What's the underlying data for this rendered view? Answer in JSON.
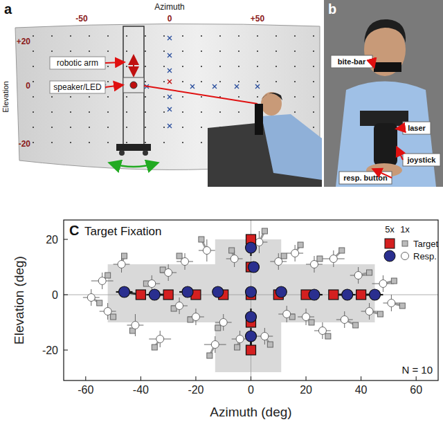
{
  "panel_a": {
    "label": "a",
    "axis_title": "Azimuth",
    "azimuth_ticks": [
      "-50",
      "0",
      "+50"
    ],
    "elevation_title": "Elevation",
    "elevation_ticks": [
      "+20",
      "0",
      "-20"
    ],
    "callouts": [
      "robotic arm",
      "speaker/LED"
    ]
  },
  "panel_b": {
    "label": "b",
    "callouts": [
      "bite-bar",
      "laser",
      "joystick",
      "resp. button"
    ]
  },
  "chart_data": {
    "type": "scatter",
    "panel_label": "C",
    "title": "Target Fixation",
    "xlabel": "Azimuth (deg)",
    "ylabel": "Elevation (deg)",
    "xlim": [
      -68,
      68
    ],
    "ylim": [
      -31,
      27
    ],
    "xticks": [
      -60,
      -40,
      -20,
      0,
      20,
      40,
      60
    ],
    "yticks": [
      -20,
      0,
      20
    ],
    "grid": false,
    "legend": "upper right",
    "legend_columns": [
      "5x",
      "1x"
    ],
    "annotation": "N = 10",
    "reference_lines": {
      "x": [
        0
      ],
      "y": [
        0
      ]
    },
    "shaded_regions": [
      {
        "xlim": [
          -52,
          45
        ],
        "ylim": [
          -10,
          11
        ]
      },
      {
        "xlim": [
          -13,
          11
        ],
        "ylim": [
          -28,
          20
        ]
      }
    ],
    "series": [
      {
        "name": "Target",
        "color": "#d42020",
        "marker": "square",
        "x": [
          -40,
          -30,
          -20,
          -10,
          10,
          20,
          30,
          40,
          0,
          0,
          0,
          0,
          0
        ],
        "values": [
          0,
          0,
          0,
          0,
          0,
          0,
          0,
          0,
          20,
          10,
          0,
          -10,
          -20
        ]
      },
      {
        "name": "Resp.",
        "color": "#2a2f8f",
        "marker": "circle",
        "x": [
          -46,
          -35,
          -23,
          -12,
          11,
          23,
          35,
          45,
          0,
          1,
          0,
          0,
          0
        ],
        "values": [
          1,
          0,
          1,
          1,
          1,
          0,
          0,
          0,
          17,
          10,
          1,
          -8,
          -15
        ],
        "x_error": [
          3,
          3,
          3,
          2,
          2,
          3,
          3,
          3,
          2,
          2,
          1,
          2,
          2
        ],
        "y_error": [
          2,
          2,
          2,
          2,
          2,
          2,
          2,
          2,
          3,
          2,
          1,
          3,
          3
        ]
      },
      {
        "name": "Target",
        "color": "#bbbbbb",
        "marker": "square",
        "x": [
          -55,
          -52,
          -50,
          -46,
          -43,
          -38,
          -35,
          -32,
          -28,
          -26,
          -22,
          -18,
          -15,
          -12,
          -7,
          -5,
          5,
          7,
          12,
          15,
          18,
          22,
          25,
          28,
          33,
          38,
          43,
          47,
          52,
          55
        ],
        "values": [
          -3,
          7,
          -8,
          14,
          -13,
          4,
          -19,
          9,
          -5,
          14,
          -9,
          20,
          -22,
          -12,
          16,
          -19,
          23,
          -18,
          14,
          -8,
          18,
          -10,
          13,
          -15,
          16,
          -11,
          8,
          -7,
          5,
          -4
        ]
      },
      {
        "name": "Resp.",
        "color": "#ffffff",
        "marker": "circle",
        "x": [
          -58,
          -54,
          -52,
          -47,
          -42,
          -36,
          -33,
          -30,
          -26,
          -24,
          -20,
          -16,
          -13,
          -10,
          -6,
          -4,
          3,
          5,
          10,
          13,
          16,
          20,
          23,
          26,
          30,
          34,
          39,
          43,
          48,
          51
        ],
        "values": [
          -1,
          5,
          -6,
          11,
          -11,
          4,
          -16,
          8,
          -4,
          12,
          -8,
          16,
          -18,
          -10,
          13,
          -16,
          19,
          -15,
          12,
          -7,
          15,
          -8,
          11,
          -13,
          13,
          -9,
          7,
          -6,
          4,
          -3
        ],
        "x_error": [
          3,
          4,
          3,
          3,
          3,
          3,
          4,
          3,
          3,
          3,
          3,
          3,
          4,
          3,
          3,
          3,
          3,
          3,
          3,
          3,
          3,
          3,
          3,
          3,
          4,
          3,
          3,
          3,
          4,
          3
        ],
        "y_error": [
          3,
          3,
          3,
          3,
          4,
          3,
          3,
          3,
          3,
          3,
          3,
          4,
          3,
          3,
          3,
          3,
          4,
          3,
          3,
          3,
          3,
          3,
          3,
          3,
          3,
          3,
          3,
          3,
          3,
          3
        ]
      }
    ]
  }
}
